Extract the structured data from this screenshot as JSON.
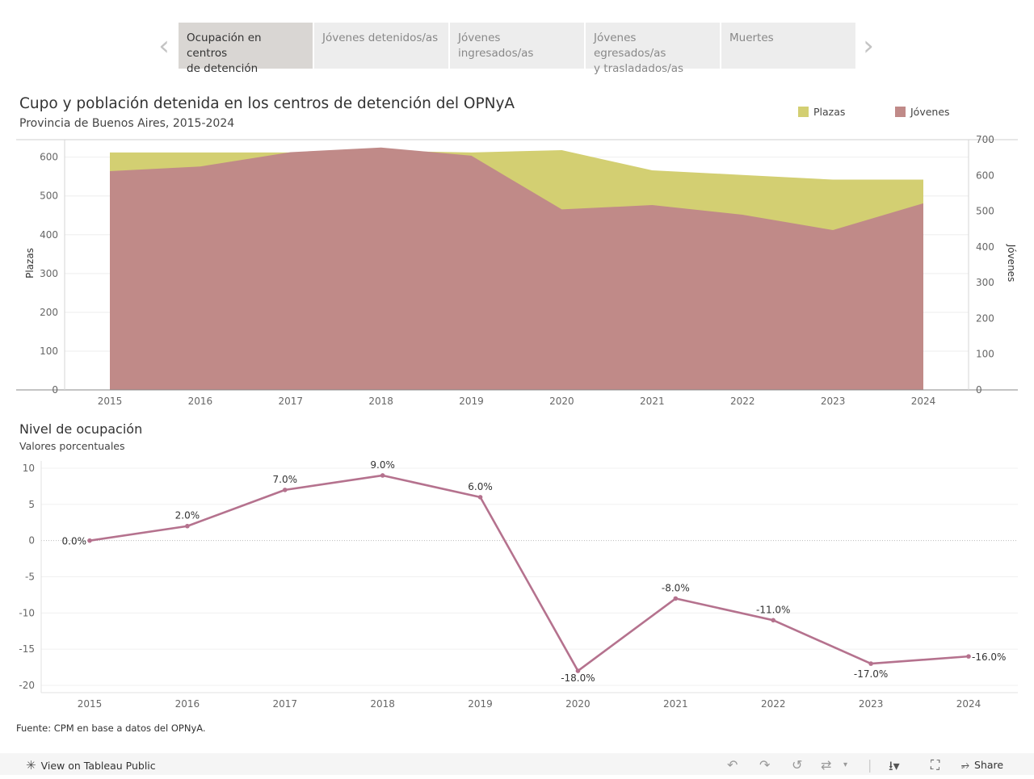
{
  "tabs": [
    {
      "label_1": "Ocupación en centros",
      "label_2": "de detención"
    },
    {
      "label_1": "Jóvenes detenidos/as",
      "label_2": ""
    },
    {
      "label_1": "Jóvenes ingresados/as",
      "label_2": ""
    },
    {
      "label_1": "Jóvenes egresados/as",
      "label_2": "y trasladados/as"
    },
    {
      "label_1": "Muertes",
      "label_2": ""
    }
  ],
  "colors": {
    "plazas": "#d3cf72",
    "jovenes": "#c08a88",
    "line": "#b5728e"
  },
  "source": "Fuente: CPM en base a datos del OPNyA.",
  "footer": {
    "view_label": "View on Tableau Public",
    "share_label": "Share"
  },
  "chart_data": [
    {
      "type": "area",
      "title": "Cupo y población detenida en los centros de detención del OPNyA",
      "subtitle": "Provincia de Buenos Aires, 2015-2024",
      "categories": [
        "2015",
        "2016",
        "2017",
        "2018",
        "2019",
        "2020",
        "2021",
        "2022",
        "2023",
        "2024"
      ],
      "series": [
        {
          "name": "Plazas",
          "axis": "left",
          "values": [
            612,
            612,
            612,
            616,
            612,
            618,
            566,
            554,
            542,
            542
          ]
        },
        {
          "name": "Jóvenes",
          "axis": "right",
          "values": [
            612,
            625,
            665,
            678,
            655,
            505,
            517,
            490,
            447,
            522
          ]
        }
      ],
      "ylabel": "Plazas",
      "ylabel_right": "Jóvenes",
      "ylim": [
        0,
        645
      ],
      "ylim_right": [
        0,
        700
      ],
      "yticks": [
        0,
        100,
        200,
        300,
        400,
        500,
        600
      ],
      "yticks_right": [
        0,
        100,
        200,
        300,
        400,
        500,
        600,
        700
      ],
      "legend": "top-right",
      "grid": true
    },
    {
      "type": "line",
      "title": "Nivel de ocupación",
      "subtitle": "Valores porcentuales",
      "categories": [
        "2015",
        "2016",
        "2017",
        "2018",
        "2019",
        "2020",
        "2021",
        "2022",
        "2023",
        "2024"
      ],
      "values": [
        0,
        2,
        7,
        9,
        6,
        -18,
        -8,
        -11,
        -17,
        -16
      ],
      "data_labels": [
        "0.0%",
        "2.0%",
        "7.0%",
        "9.0%",
        "6.0%",
        "-18.0%",
        "-8.0%",
        "-11.0%",
        "-17.0%",
        "-16.0%"
      ],
      "ylim": [
        -20,
        10
      ],
      "yticks": [
        10,
        5,
        0,
        -5,
        -10,
        -15,
        -20
      ],
      "grid": true
    }
  ]
}
